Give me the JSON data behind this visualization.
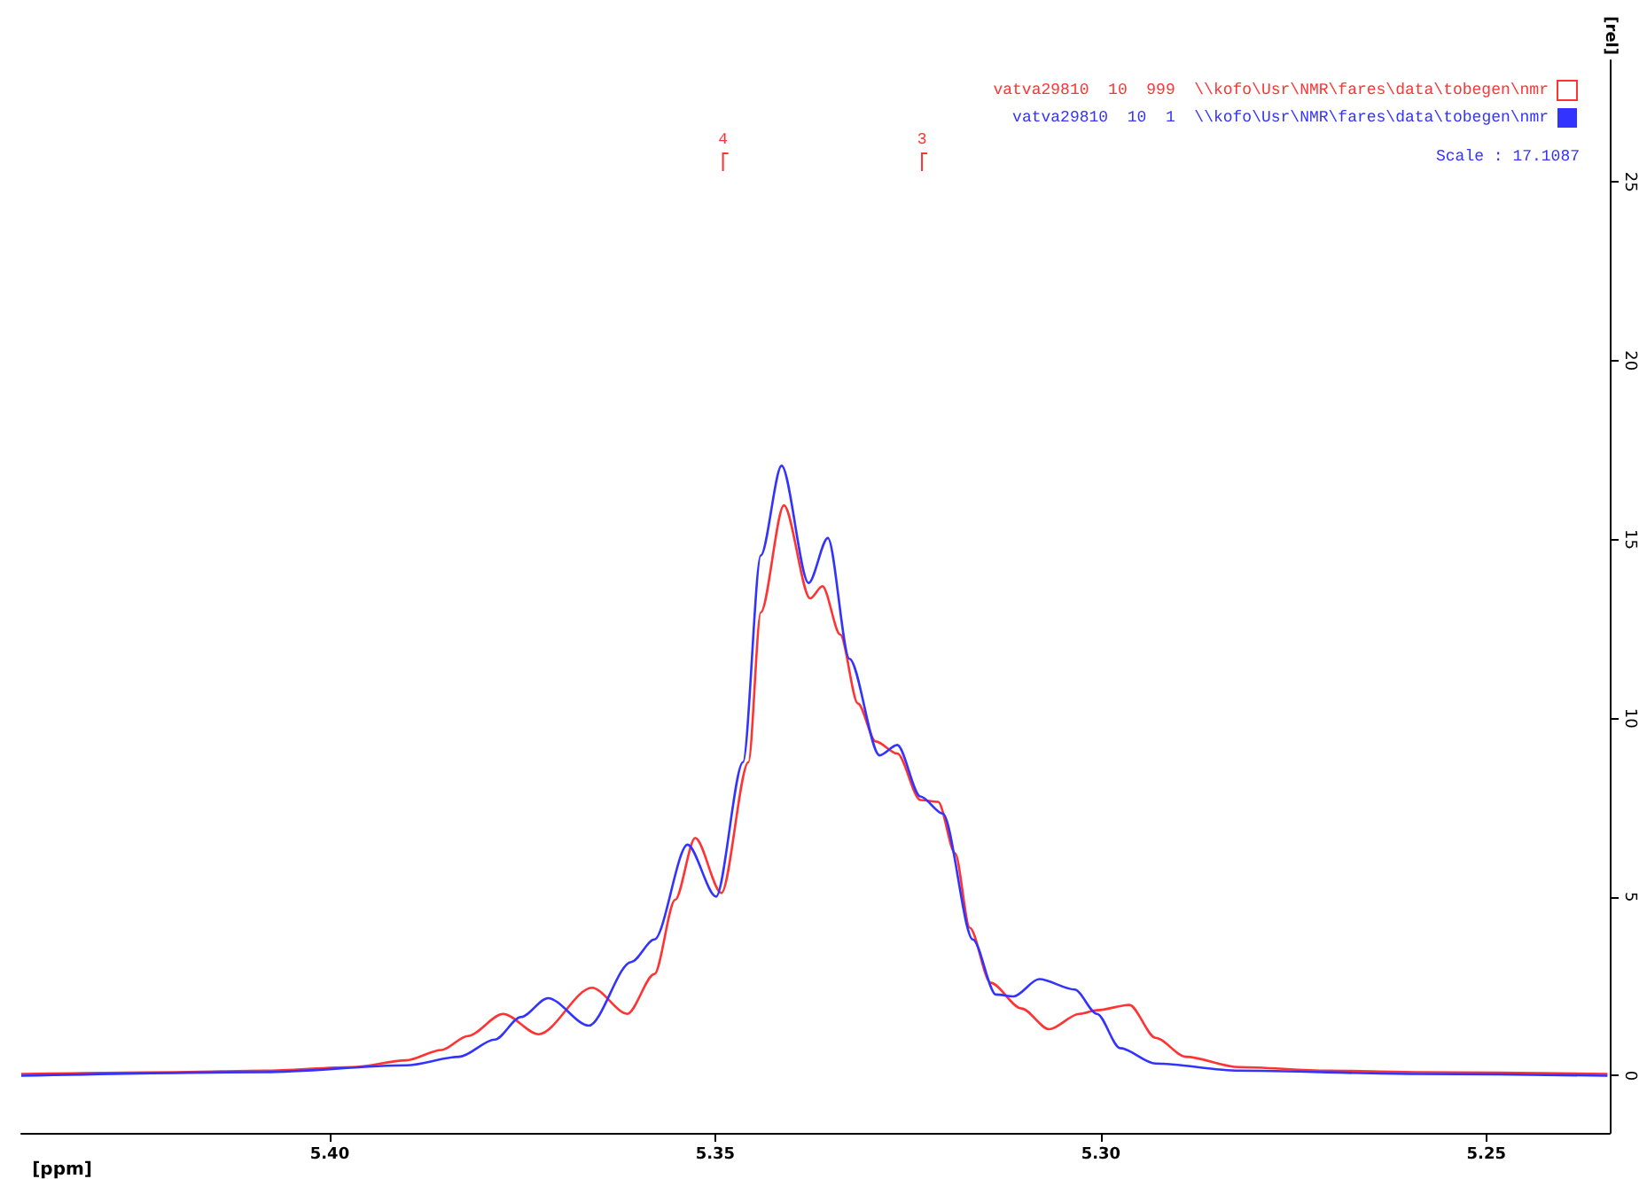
{
  "chart_data": {
    "type": "line",
    "xlabel": "[ppm]",
    "ylabel": "[rel]",
    "xlim": [
      5.44,
      5.234
    ],
    "xticks": [
      {
        "value": 5.4,
        "label": "5.40"
      },
      5.35,
      {
        "value": 5.3,
        "label": "5.30"
      },
      5.25
    ],
    "ylim": [
      -1.6,
      28.4
    ],
    "yticks": [
      0,
      5,
      10,
      15,
      20,
      25
    ],
    "grid": false,
    "legend": "top right",
    "marker": "none",
    "line_style": "solid",
    "annotations": [
      {
        "text": "4",
        "x": 5.349,
        "y": 25.6
      },
      {
        "text": "3",
        "x": 5.3232,
        "y": 25.6
      },
      "Scale : 17.1087"
    ],
    "series": [
      {
        "name": "vatva29810  10  999  \\\\kofo\\Usr\\NMR\\fares\\data\\tobegen\\nmr",
        "color": "#ff3333",
        "x": [
          5.44,
          5.42,
          5.4085,
          5.397,
          5.3901,
          5.3855,
          5.3821,
          5.3775,
          5.3729,
          5.366,
          5.3614,
          5.3579,
          5.3552,
          5.3526,
          5.3492,
          5.3457,
          5.3441,
          5.3411,
          5.3377,
          5.3361,
          5.3338,
          5.3315,
          5.3292,
          5.3264,
          5.3234,
          5.3211,
          5.3189,
          5.317,
          5.3143,
          5.3103,
          5.3067,
          5.3028,
          5.3005,
          5.2963,
          5.2929,
          5.289,
          5.2821,
          5.2706,
          5.2591,
          5.2343
        ],
        "values": [
          0.05,
          0.1,
          0.14,
          0.24,
          0.43,
          0.72,
          1.11,
          1.73,
          1.16,
          2.46,
          1.73,
          2.84,
          4.92,
          6.65,
          5.11,
          8.77,
          12.96,
          15.95,
          13.35,
          13.69,
          12.34,
          10.41,
          9.35,
          9.01,
          7.71,
          7.66,
          6.22,
          4.14,
          2.6,
          1.88,
          1.3,
          1.73,
          1.83,
          1.98,
          1.06,
          0.53,
          0.24,
          0.14,
          0.1,
          0.05
        ]
      },
      {
        "name": "vatva29810  10  1  \\\\kofo\\Usr\\NMR\\fares\\data\\tobegen\\nmr",
        "color": "#3333ff",
        "x": [
          5.44,
          5.4085,
          5.3901,
          5.3832,
          5.3786,
          5.3752,
          5.3717,
          5.3664,
          5.3609,
          5.3579,
          5.3536,
          5.3499,
          5.3464,
          5.3441,
          5.3414,
          5.3379,
          5.3354,
          5.3326,
          5.3287,
          5.3264,
          5.3234,
          5.3205,
          5.3166,
          5.3136,
          5.3113,
          5.308,
          5.3034,
          5.3005,
          5.2975,
          5.2929,
          5.2821,
          5.2591,
          5.2343
        ],
        "values": [
          0,
          0.1,
          0.29,
          0.53,
          1.01,
          1.64,
          2.17,
          1.4,
          3.18,
          3.81,
          6.46,
          5.01,
          8.77,
          14.55,
          17.06,
          13.78,
          15.04,
          11.66,
          8.96,
          9.25,
          7.81,
          7.33,
          3.81,
          2.27,
          2.22,
          2.7,
          2.41,
          1.73,
          0.77,
          0.34,
          0.14,
          0.05,
          0
        ]
      }
    ]
  }
}
